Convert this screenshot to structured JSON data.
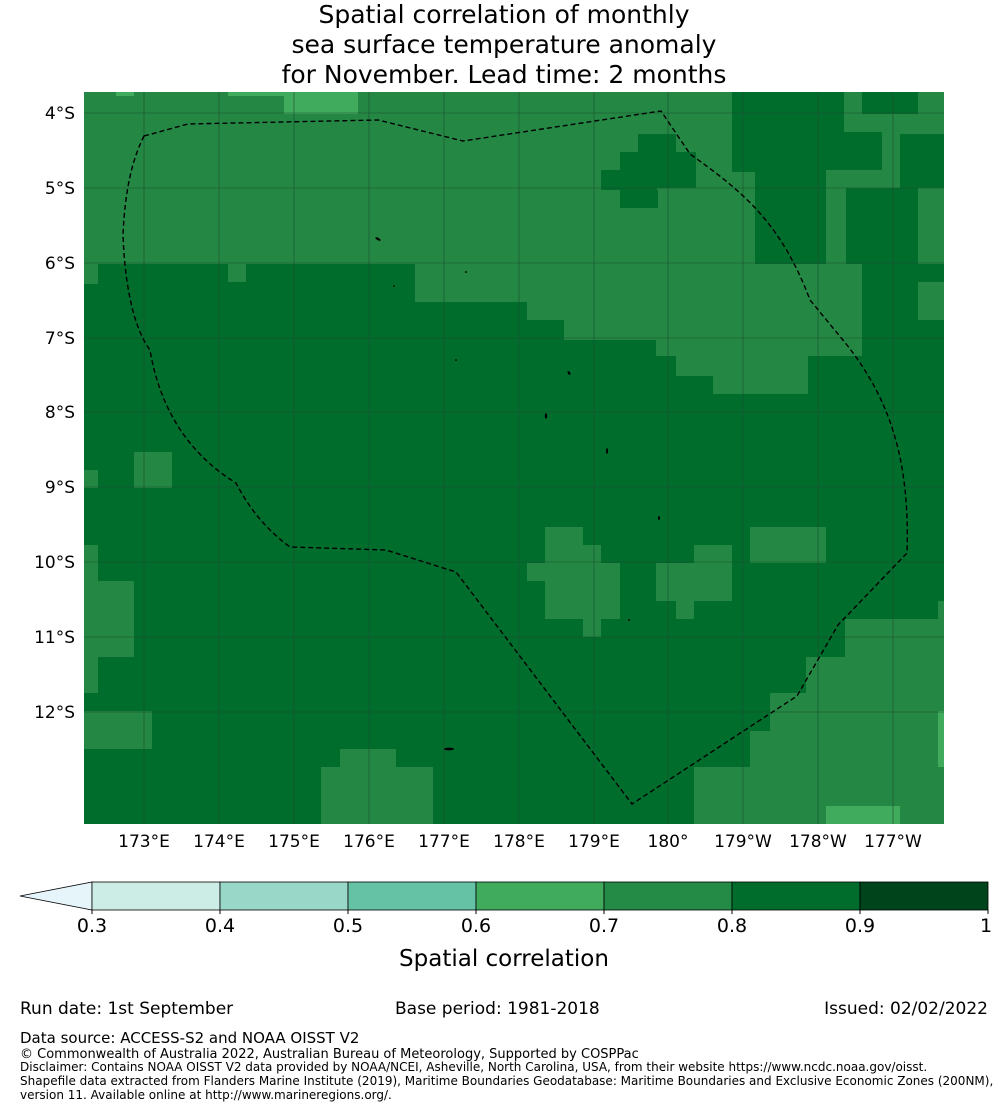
{
  "title": {
    "line1": "Spatial correlation of monthly",
    "line2": "sea surface temperature anomaly",
    "line3": "for November. Lead time: 2 months"
  },
  "map": {
    "lat_labels": [
      "4°S",
      "5°S",
      "6°S",
      "7°S",
      "8°S",
      "9°S",
      "10°S",
      "11°S",
      "12°S"
    ],
    "lon_labels": [
      "173°E",
      "174°E",
      "175°E",
      "176°E",
      "177°E",
      "178°E",
      "179°E",
      "180°",
      "179°W",
      "178°W",
      "177°W"
    ],
    "colors": {
      "c06_07": "#238b45",
      "c07_08": "#248844",
      "c08_09": "#006d2c",
      "c05_06": "#41ab5d",
      "c09_10": "#00441b",
      "grid": "#1a4d2e",
      "boundary": "#000000"
    }
  },
  "colorbar": {
    "ticks": [
      "0.3",
      "0.4",
      "0.5",
      "0.6",
      "0.7",
      "0.8",
      "0.9",
      "1"
    ],
    "colors": [
      "#ccece6",
      "#99d8c9",
      "#66c2a4",
      "#41ab5d",
      "#238b45",
      "#006d2c",
      "#00441b"
    ],
    "extend_color": "#e5f5f9",
    "label": "Spatial correlation"
  },
  "footer": {
    "run_date": "Run date: 1st September",
    "base_period": "Base period: 1981-2018",
    "issued": "Issued: 02/02/2022",
    "data_source": "Data source: ACCESS-S2 and NOAA OISST V2",
    "copyright": "© Commonwealth of Australia 2022, Australian Bureau of Meteorology, Supported by COSPPac",
    "disclaimer": "Disclaimer: Contains NOAA OISST V2 data provided by NOAA/NCEI, Asheville, North Carolina, USA, from their website https://www.ncdc.noaa.gov/oisst.",
    "shapefile1": "Shapefile data extracted from Flanders Marine Institute (2019), Maritime Boundaries Geodatabase: Maritime Boundaries and Exclusive Economic Zones (200NM),",
    "shapefile2": "version 11. Available online at http://www.marineregions.org/."
  }
}
